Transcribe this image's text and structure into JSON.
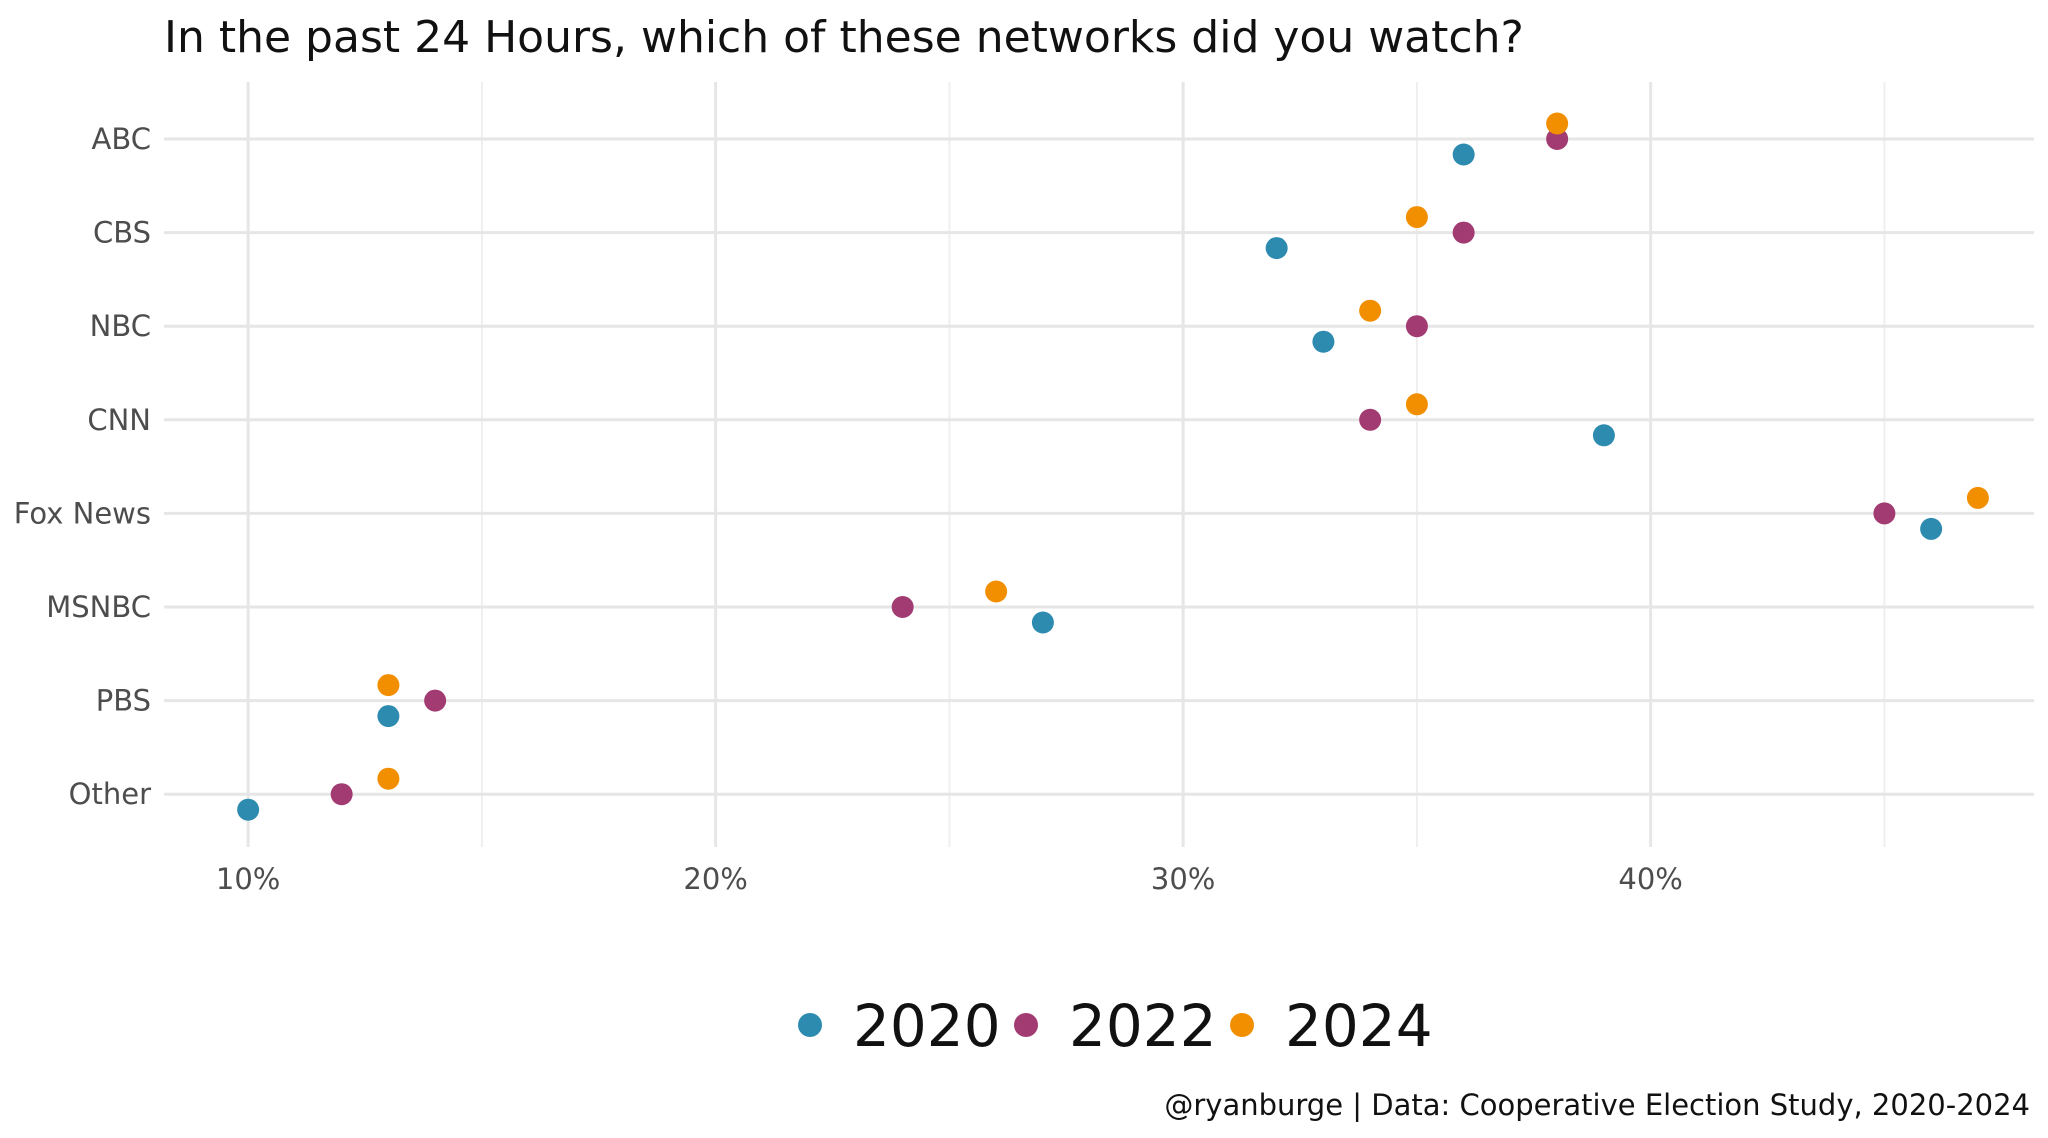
{
  "chart_data": {
    "type": "scatter",
    "title": "In the past 24 Hours, which of these networks did you watch?",
    "caption": "@ryanburge | Data: Cooperative Election Study, 2020-2024",
    "xlabel": "",
    "ylabel": "",
    "xlim": [
      8.2,
      48.2
    ],
    "x_ticks": [
      10,
      20,
      30,
      40
    ],
    "x_tick_labels": [
      "10%",
      "20%",
      "30%",
      "40%"
    ],
    "x_minor_ticks": [
      15,
      25,
      35,
      45
    ],
    "categories": [
      "ABC",
      "CBS",
      "NBC",
      "CNN",
      "Fox News",
      "MSNBC",
      "PBS",
      "Other"
    ],
    "legend_position": "bottom",
    "grid": true,
    "series": [
      {
        "name": "2020",
        "color": "#2e8bb0",
        "offset": -1,
        "values": [
          36,
          32,
          33,
          39,
          46,
          27,
          13,
          10
        ]
      },
      {
        "name": "2022",
        "color": "#a23b72",
        "offset": 0,
        "values": [
          38,
          36,
          35,
          34,
          45,
          24,
          14,
          12
        ]
      },
      {
        "name": "2024",
        "color": "#f18f01",
        "offset": 1,
        "values": [
          38,
          35,
          34,
          35,
          47,
          26,
          13,
          13
        ]
      }
    ]
  }
}
